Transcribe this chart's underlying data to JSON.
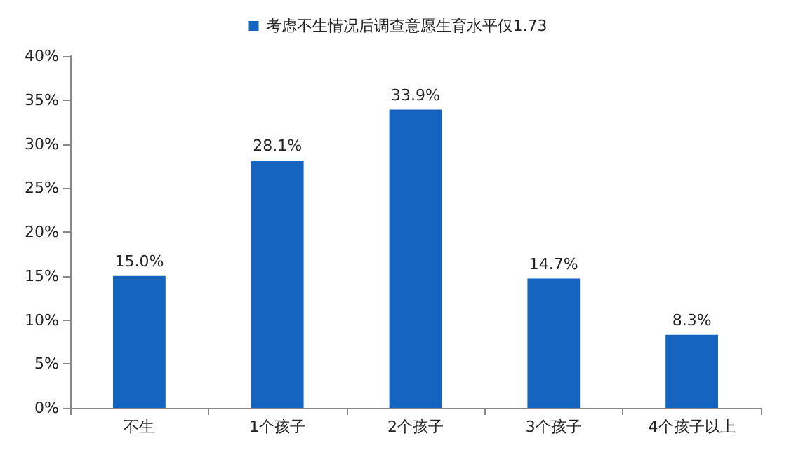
{
  "chart_data": {
    "type": "bar",
    "categories": [
      "不生",
      "1个孩子",
      "2个孩子",
      "3个孩子",
      "4个孩子以上"
    ],
    "series": [
      {
        "name": "考虑不生情况后调查意愿生育水平仅1.73",
        "color": "#1565c0",
        "values": [
          15.0,
          28.1,
          33.9,
          14.7,
          8.3
        ],
        "value_labels": [
          "15.0%",
          "28.1%",
          "33.9%",
          "14.7%",
          "8.3%"
        ]
      }
    ],
    "ylim": [
      0,
      40
    ],
    "yticks": [
      {
        "value": 0,
        "label": "0%"
      },
      {
        "value": 5,
        "label": "5%"
      },
      {
        "value": 10,
        "label": "10%"
      },
      {
        "value": 15,
        "label": "15%"
      },
      {
        "value": 20,
        "label": "20%"
      },
      {
        "value": 25,
        "label": "25%"
      },
      {
        "value": 30,
        "label": "30%"
      },
      {
        "value": 35,
        "label": "35%"
      },
      {
        "value": 40,
        "label": "40%"
      }
    ],
    "grid": false,
    "legend": "top"
  }
}
